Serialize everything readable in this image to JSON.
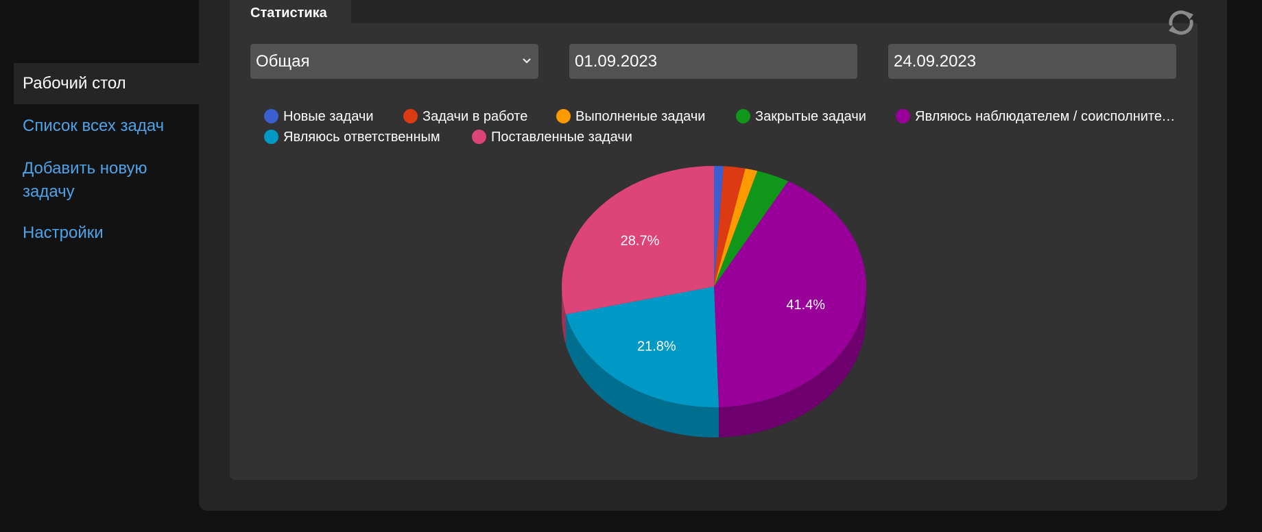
{
  "sidebar": {
    "items": [
      {
        "label": "Рабочий стол",
        "active": true
      },
      {
        "label": "Список всех задач",
        "active": false
      },
      {
        "label": "Добавить новую задачу",
        "active": false
      },
      {
        "label": "Настройки",
        "active": false
      }
    ]
  },
  "tab": {
    "label": "Статистика"
  },
  "filters": {
    "type_value": "Общая",
    "date_from": "01.09.2023",
    "date_to": "24.09.2023"
  },
  "icons": {
    "refresh": "refresh-icon",
    "chevron": "chevron-down-icon"
  },
  "chart_data": {
    "type": "pie",
    "style": "3d",
    "legend_position": "top",
    "slices": [
      {
        "name": "Новые задачи",
        "value": 1.0,
        "color": "#3b5fd0",
        "label": ""
      },
      {
        "name": "Задачи в работе",
        "value": 2.3,
        "color": "#dc3a12",
        "label": ""
      },
      {
        "name": "Выполненые задачи",
        "value": 1.3,
        "color": "#ff9900",
        "label": ""
      },
      {
        "name": "Закрытые задачи",
        "value": 3.5,
        "color": "#109618",
        "label": ""
      },
      {
        "name": "Являюсь наблюдателем / соисполнителем",
        "value": 41.4,
        "color": "#990099",
        "label": "41.4%"
      },
      {
        "name": "Являюсь ответственным",
        "value": 21.8,
        "color": "#0099c6",
        "label": "21.8%"
      },
      {
        "name": "Поставленные задачи",
        "value": 28.7,
        "color": "#dd4477",
        "label": "28.7%"
      }
    ]
  }
}
